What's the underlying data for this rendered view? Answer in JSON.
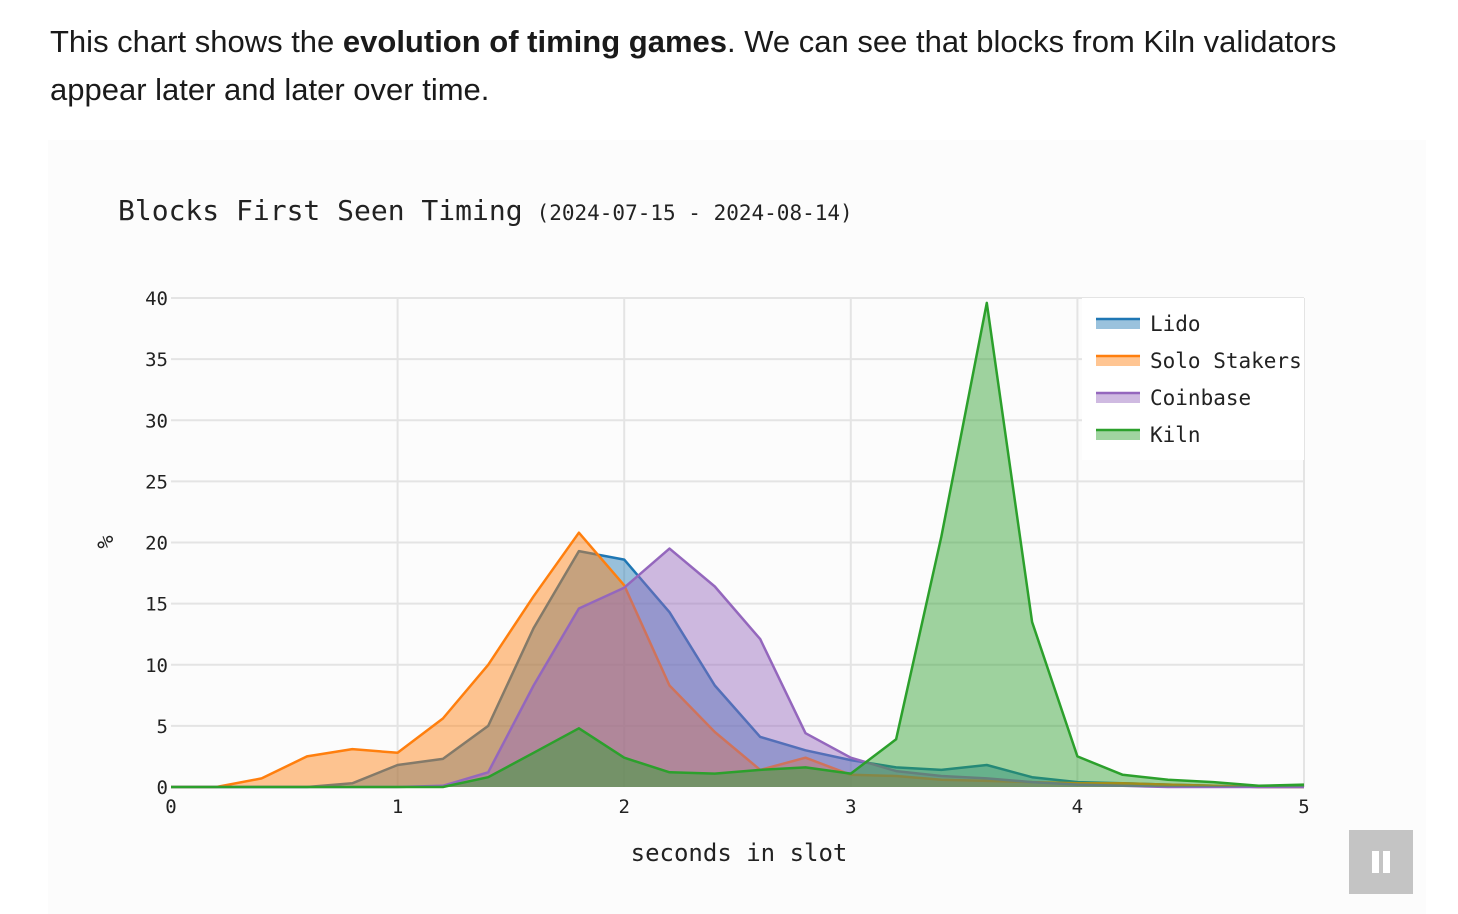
{
  "intro": {
    "before": "This chart shows the ",
    "bold": "evolution of timing games",
    "after": ". We can see that blocks from Kiln validators appear later and later over time."
  },
  "chart_data": {
    "type": "area",
    "title": "Blocks First Seen Timing",
    "subtitle": "(2024-07-15 - 2024-08-14)",
    "xlabel": "seconds in slot",
    "ylabel": "%",
    "xlim": [
      0,
      5
    ],
    "ylim": [
      0,
      40
    ],
    "xticks": [
      "0",
      "1",
      "2",
      "3",
      "4",
      "5"
    ],
    "yticks": [
      "0",
      "5",
      "10",
      "15",
      "20",
      "25",
      "30",
      "35",
      "40"
    ],
    "grid": true,
    "legend_position": "top-right",
    "x": [
      0,
      0.2,
      0.4,
      0.6,
      0.8,
      1.0,
      1.2,
      1.4,
      1.6,
      1.8,
      2.0,
      2.2,
      2.4,
      2.6,
      2.8,
      3.0,
      3.2,
      3.4,
      3.6,
      3.8,
      4.0,
      4.2,
      4.4,
      4.6,
      4.8,
      5.0
    ],
    "series": [
      {
        "name": "Lido",
        "color": "#1f77b4",
        "values": [
          0,
          0,
          0,
          0,
          0.3,
          1.8,
          2.3,
          5,
          13,
          19.3,
          18.6,
          14.3,
          8.3,
          4.1,
          3.0,
          2.2,
          1.6,
          1.4,
          1.8,
          0.8,
          0.4,
          0.3,
          0.2,
          0.1,
          0,
          0
        ]
      },
      {
        "name": "Solo Stakers",
        "color": "#ff7f0e",
        "values": [
          0,
          0,
          0.7,
          2.5,
          3.1,
          2.8,
          5.6,
          10,
          15.6,
          20.8,
          16.5,
          8.3,
          4.5,
          1.4,
          2.4,
          1.0,
          0.9,
          0.6,
          0.5,
          0.4,
          0.3,
          0.3,
          0.2,
          0.1,
          0,
          0
        ]
      },
      {
        "name": "Coinbase",
        "color": "#9467bd",
        "values": [
          0,
          0,
          0,
          0,
          0,
          0,
          0.1,
          1.2,
          8.3,
          14.6,
          16.3,
          19.5,
          16.4,
          12.1,
          4.4,
          2.4,
          1.3,
          0.9,
          0.7,
          0.4,
          0.2,
          0.1,
          0,
          0,
          0,
          0
        ]
      },
      {
        "name": "Kiln",
        "color": "#2ca02c",
        "values": [
          0,
          0,
          0,
          0,
          0,
          0,
          0,
          0.8,
          2.8,
          4.8,
          2.4,
          1.2,
          1.1,
          1.4,
          1.6,
          1.1,
          3.9,
          20.5,
          39.6,
          13.5,
          2.5,
          1.0,
          0.6,
          0.4,
          0.1,
          0.2
        ]
      }
    ]
  },
  "controls": {
    "pause_icon": "pause-icon"
  }
}
